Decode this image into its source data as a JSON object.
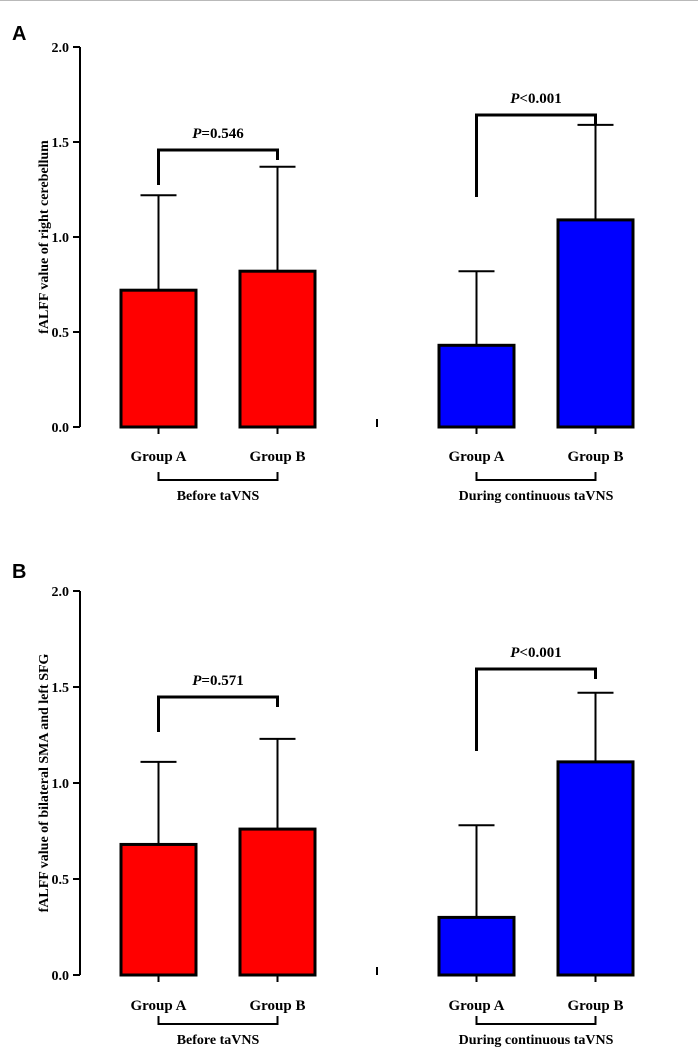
{
  "figure": {
    "panels": [
      {
        "letter": "A",
        "ylabel": "fALFF value of right cerebellum",
        "ylim": [
          0,
          2.0
        ],
        "yticks": [
          "0.0",
          "0.5",
          "1.0",
          "1.5",
          "2.0"
        ],
        "group_labels": [
          "Before taVNS",
          "During continuous taVNS"
        ],
        "comparisons": [
          {
            "italic": "P",
            "rest": "=0.546"
          },
          {
            "italic": "P",
            "rest": "<0.001"
          }
        ]
      },
      {
        "letter": "B",
        "ylabel": "fALFF value of bilateral SMA and left SFG",
        "ylim": [
          0,
          2.0
        ],
        "yticks": [
          "0.0",
          "0.5",
          "1.0",
          "1.5",
          "2.0"
        ],
        "group_labels": [
          "Before taVNS",
          "During continuous taVNS"
        ],
        "comparisons": [
          {
            "italic": "P",
            "rest": "=0.571"
          },
          {
            "italic": "P",
            "rest": "<0.001"
          }
        ]
      }
    ]
  },
  "chart_data": [
    {
      "type": "bar",
      "title": "A",
      "ylabel": "fALFF value of right cerebellum",
      "ylim": [
        0,
        2.0
      ],
      "categories": [
        "Group A",
        "Group B",
        "Group A",
        "Group B"
      ],
      "groups": [
        "Before taVNS",
        "Before taVNS",
        "During continuous taVNS",
        "During continuous taVNS"
      ],
      "values": [
        0.72,
        0.82,
        0.43,
        1.09
      ],
      "error_upper": [
        1.22,
        1.37,
        0.82,
        1.59
      ],
      "colors": [
        "#ff0000",
        "#ff0000",
        "#0000ff",
        "#0000ff"
      ],
      "annotations": [
        "P=0.546",
        "P<0.001"
      ]
    },
    {
      "type": "bar",
      "title": "B",
      "ylabel": "fALFF value of bilateral SMA and left SFG",
      "ylim": [
        0,
        2.0
      ],
      "categories": [
        "Group A",
        "Group B",
        "Group A",
        "Group B"
      ],
      "groups": [
        "Before taVNS",
        "Before taVNS",
        "During continuous taVNS",
        "During continuous taVNS"
      ],
      "values": [
        0.68,
        0.76,
        0.3,
        1.11
      ],
      "error_upper": [
        1.11,
        1.23,
        0.78,
        1.47
      ],
      "colors": [
        "#ff0000",
        "#ff0000",
        "#0000ff",
        "#0000ff"
      ],
      "annotations": [
        "P=0.571",
        "P<0.001"
      ]
    }
  ]
}
